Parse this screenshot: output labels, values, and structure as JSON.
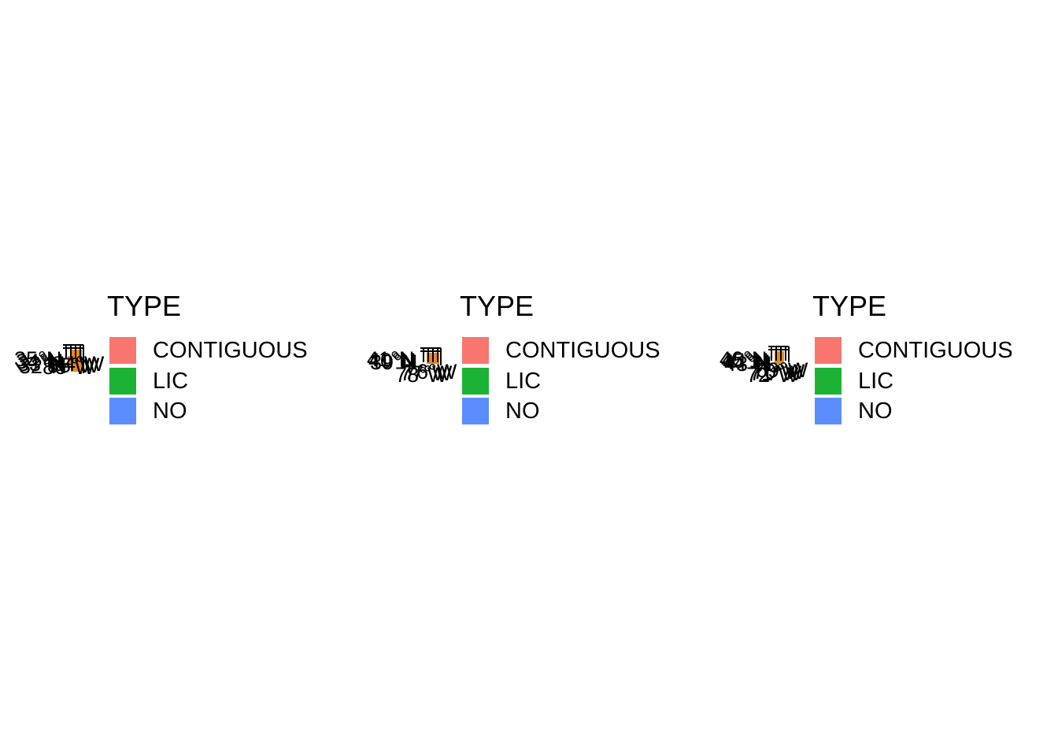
{
  "colors": {
    "CONTIGUOUS": "#f8766d",
    "LIC": "#1cb335",
    "NO": "#5c8dff",
    "overlay": "#e8891c",
    "frame": "#000000",
    "background": "#ffffff"
  },
  "panels": [
    {
      "legend": {
        "title": "TYPE",
        "items": [
          {
            "label": "CONTIGUOUS",
            "key": "CONTIGUOUS"
          },
          {
            "label": "LIC",
            "key": "LIC"
          },
          {
            "label": "NO",
            "key": "NO"
          }
        ]
      },
      "map": {
        "lat_labels": [
          "35°N",
          "34°N",
          "33°N",
          "32°N"
        ],
        "lon_labels": [
          "86°W",
          "85°W",
          "84°W"
        ]
      }
    },
    {
      "legend": {
        "title": "TYPE",
        "items": [
          {
            "label": "CONTIGUOUS",
            "key": "CONTIGUOUS"
          },
          {
            "label": "LIC",
            "key": "LIC"
          },
          {
            "label": "NO",
            "key": "NO"
          }
        ]
      },
      "map": {
        "lat_labels": [
          "41°N",
          "40°N",
          "39°N"
        ],
        "lon_labels": [
          "78°W",
          "77°W",
          "76°W"
        ]
      }
    },
    {
      "legend": {
        "title": "TYPE",
        "items": [
          {
            "label": "CONTIGUOUS",
            "key": "CONTIGUOUS"
          },
          {
            "label": "LIC",
            "key": "LIC"
          },
          {
            "label": "NO",
            "key": "NO"
          }
        ]
      },
      "map": {
        "lat_labels": [
          "46°N",
          "45°N",
          "44°N",
          "43°N"
        ],
        "lon_labels": [
          "72°W",
          "71°W",
          "70°W",
          "69°W"
        ]
      }
    }
  ]
}
